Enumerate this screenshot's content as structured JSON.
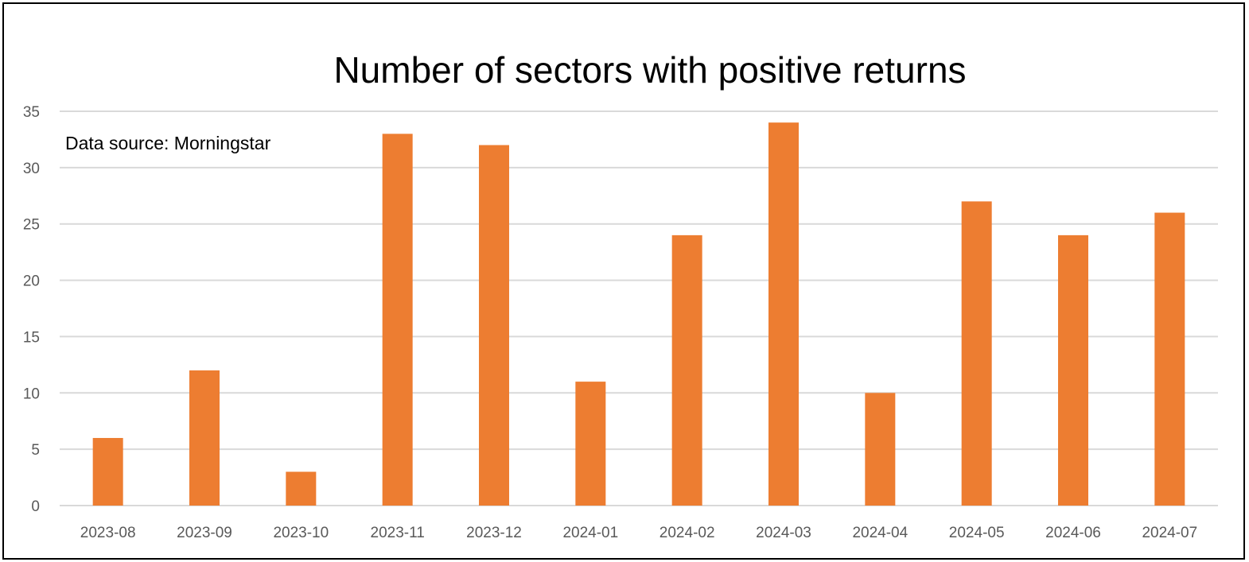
{
  "chart_data": {
    "type": "bar",
    "title": "Number of sectors with positive returns",
    "annotation": "Data source: Morningstar",
    "xlabel": "",
    "ylabel": "",
    "categories": [
      "2023-08",
      "2023-09",
      "2023-10",
      "2023-11",
      "2023-12",
      "2024-01",
      "2024-02",
      "2024-03",
      "2024-04",
      "2024-05",
      "2024-06",
      "2024-07"
    ],
    "values": [
      6,
      12,
      3,
      33,
      32,
      11,
      24,
      34,
      10,
      27,
      24,
      26
    ],
    "ylim": [
      0,
      35
    ],
    "yticks": [
      0,
      5,
      10,
      15,
      20,
      25,
      30,
      35
    ],
    "grid": true,
    "legend": "none",
    "bar_color": "#ed7d31"
  }
}
